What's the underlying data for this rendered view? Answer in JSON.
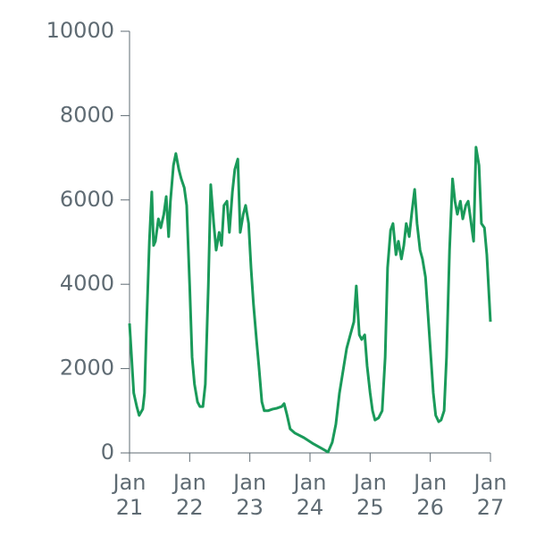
{
  "chart_data": {
    "type": "line",
    "x": [
      0,
      0.07,
      0.12,
      0.16,
      0.22,
      0.25,
      0.28,
      0.33,
      0.37,
      0.4,
      0.43,
      0.48,
      0.52,
      0.57,
      0.61,
      0.65,
      0.68,
      0.73,
      0.77,
      0.82,
      0.86,
      0.91,
      0.95,
      1.0,
      1.04,
      1.08,
      1.13,
      1.17,
      1.22,
      1.26,
      1.31,
      1.35,
      1.4,
      1.44,
      1.49,
      1.53,
      1.57,
      1.62,
      1.66,
      1.71,
      1.75,
      1.8,
      1.84,
      1.89,
      1.93,
      1.98,
      2.02,
      2.06,
      2.11,
      2.15,
      2.2,
      2.24,
      2.3,
      2.38,
      2.45,
      2.53,
      2.57,
      2.62,
      2.67,
      2.75,
      2.9,
      3.04,
      3.19,
      3.3,
      3.37,
      3.43,
      3.49,
      3.55,
      3.61,
      3.67,
      3.73,
      3.77,
      3.82,
      3.86,
      3.91,
      3.95,
      4.0,
      4.04,
      4.08,
      4.14,
      4.2,
      4.25,
      4.29,
      4.34,
      4.38,
      4.43,
      4.47,
      4.52,
      4.56,
      4.6,
      4.65,
      4.69,
      4.74,
      4.78,
      4.83,
      4.87,
      4.92,
      4.96,
      5.01,
      5.05,
      5.09,
      5.14,
      5.18,
      5.23,
      5.27,
      5.32,
      5.37,
      5.41,
      5.45,
      5.5,
      5.54,
      5.59,
      5.63,
      5.68,
      5.72,
      5.76,
      5.81,
      5.85,
      5.9,
      5.94,
      6.0
    ],
    "series": [
      {
        "color": "#1a9a5a",
        "values": [
          3070,
          1420,
          1100,
          890,
          1040,
          1420,
          2900,
          5020,
          6190,
          4920,
          5020,
          5550,
          5340,
          5660,
          6080,
          5130,
          5970,
          6820,
          7100,
          6720,
          6500,
          6290,
          5870,
          3960,
          2270,
          1630,
          1210,
          1100,
          1100,
          1630,
          3960,
          6360,
          5440,
          4810,
          5230,
          4920,
          5870,
          5970,
          5230,
          6190,
          6720,
          6970,
          5230,
          5660,
          5870,
          5440,
          4390,
          3540,
          2690,
          2060,
          1210,
          1000,
          1000,
          1040,
          1060,
          1100,
          1170,
          890,
          570,
          470,
          360,
          230,
          110,
          20,
          250,
          680,
          1420,
          1950,
          2480,
          2800,
          3110,
          3960,
          2800,
          2690,
          2800,
          2060,
          1420,
          1000,
          780,
          830,
          1000,
          2270,
          4390,
          5280,
          5440,
          4700,
          5020,
          4600,
          4920,
          5440,
          5130,
          5660,
          6250,
          5440,
          4810,
          4600,
          4170,
          3330,
          2270,
          1420,
          890,
          740,
          780,
          1000,
          2270,
          4810,
          6500,
          5970,
          5660,
          5970,
          5550,
          5870,
          5970,
          5440,
          5020,
          7250,
          6820,
          5440,
          5340,
          4700,
          3110
        ]
      }
    ],
    "xlim": [
      0,
      6
    ],
    "xticks": [
      {
        "value": 0,
        "label": "Jan 21"
      },
      {
        "value": 1,
        "label": "Jan 22"
      },
      {
        "value": 2,
        "label": "Jan 23"
      },
      {
        "value": 3,
        "label": "Jan 24"
      },
      {
        "value": 4,
        "label": "Jan 25"
      },
      {
        "value": 5,
        "label": "Jan 26"
      },
      {
        "value": 6,
        "label": "Jan 27"
      }
    ],
    "ylim": [
      0,
      10000
    ],
    "yticks": [
      0,
      2000,
      4000,
      6000,
      8000,
      10000
    ]
  }
}
